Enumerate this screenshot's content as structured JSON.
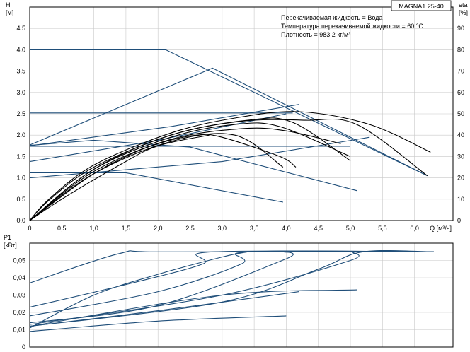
{
  "chart_data": [
    {
      "type": "line",
      "title": "MAGNA1 25-40",
      "info_lines": [
        "Перекачиваемая жидкость = Вода",
        "Температура перекачиваемой жидкости = 60 °C",
        "Плотность = 983.2 кг/м³"
      ],
      "ylabel": "H",
      "ylabel_unit": "[м]",
      "y2label": "eta",
      "y2label_unit": "[%]",
      "xlabel": "Q [м³/ч]",
      "xlim": [
        0,
        6.6
      ],
      "ylim": [
        0,
        5
      ],
      "y2lim": [
        0,
        100
      ],
      "x_ticks": [
        "0",
        "0,5",
        "1,0",
        "1,5",
        "2,0",
        "2,5",
        "3,0",
        "3,5",
        "4,0",
        "4,5",
        "5,0",
        "5,5",
        "6,0"
      ],
      "y_ticks": [
        "0.0",
        "0.5",
        "1.0",
        "1.5",
        "2.0",
        "2.5",
        "3.0",
        "3.5",
        "4.0",
        "4.5"
      ],
      "y2_ticks": [
        "0",
        "10",
        "20",
        "30",
        "40",
        "50",
        "60",
        "70",
        "80",
        "90"
      ],
      "grid": true,
      "colors": {
        "curve": "#1f4e79",
        "efficiency": "#000000",
        "grid": "#c8c8c8"
      },
      "series": [
        {
          "kind": "head",
          "points": [
            [
              0,
              4.0
            ],
            [
              2.12,
              4.0
            ],
            [
              6.2,
              1.05
            ]
          ]
        },
        {
          "kind": "head",
          "points": [
            [
              0,
              1.77
            ],
            [
              2.85,
              3.57
            ],
            [
              6.2,
              1.05
            ]
          ]
        },
        {
          "kind": "head",
          "points": [
            [
              0,
              3.22
            ],
            [
              3.3,
              3.22
            ]
          ]
        },
        {
          "kind": "head",
          "points": [
            [
              0,
              2.52
            ],
            [
              4.1,
              2.52
            ]
          ]
        },
        {
          "kind": "head",
          "points": [
            [
              0,
              1.74
            ],
            [
              5.0,
              1.74
            ]
          ]
        },
        {
          "kind": "head",
          "points": [
            [
              0,
              1.75
            ],
            [
              2.2,
              2.2
            ],
            [
              4.2,
              2.72
            ]
          ]
        },
        {
          "kind": "head",
          "points": [
            [
              0,
              1.38
            ],
            [
              2.0,
              1.88
            ],
            [
              4.0,
              2.5
            ]
          ]
        },
        {
          "kind": "head",
          "points": [
            [
              0,
              1.76
            ],
            [
              1.0,
              1.88
            ],
            [
              2.5,
              1.72
            ],
            [
              5.1,
              0.7
            ]
          ]
        },
        {
          "kind": "head",
          "points": [
            [
              0,
              1.0
            ],
            [
              3.0,
              1.38
            ],
            [
              5.3,
              1.95
            ]
          ]
        },
        {
          "kind": "head",
          "points": [
            [
              0,
              1.12
            ],
            [
              1.5,
              1.12
            ],
            [
              3.95,
              0.43
            ]
          ]
        },
        {
          "kind": "efficiency",
          "points": [
            [
              0,
              0
            ],
            [
              0.3,
              10
            ],
            [
              1.0,
              26
            ],
            [
              2.2,
              41
            ],
            [
              3.2,
              48
            ],
            [
              4.2,
              51
            ],
            [
              5.3,
              45
            ],
            [
              6.25,
              32
            ]
          ]
        },
        {
          "kind": "efficiency",
          "points": [
            [
              0,
              0
            ],
            [
              0.3,
              9.5
            ],
            [
              1.0,
              25
            ],
            [
              2.2,
              40
            ],
            [
              3.3,
              46.5
            ],
            [
              4.3,
              47
            ],
            [
              5.1,
              45
            ],
            [
              6.2,
              21
            ]
          ]
        },
        {
          "kind": "efficiency",
          "points": [
            [
              0,
              0
            ],
            [
              1.0,
              24
            ],
            [
              2.2,
              40
            ],
            [
              3.4,
              47
            ],
            [
              4.1,
              46
            ],
            [
              5.0,
              28
            ]
          ]
        },
        {
          "kind": "efficiency",
          "points": [
            [
              0,
              0
            ],
            [
              1.0,
              24
            ],
            [
              2.2,
              39
            ],
            [
              3.2,
              45
            ],
            [
              3.9,
              44
            ],
            [
              5.0,
              30
            ]
          ]
        },
        {
          "kind": "efficiency",
          "points": [
            [
              0,
              0
            ],
            [
              1.0,
              23
            ],
            [
              2.2,
              38
            ],
            [
              3.3,
              43
            ],
            [
              4.0,
              42
            ],
            [
              4.85,
              36
            ]
          ]
        },
        {
          "kind": "efficiency",
          "points": [
            [
              0,
              0
            ],
            [
              1.0,
              22
            ],
            [
              2.2,
              37
            ],
            [
              3.2,
              40
            ],
            [
              3.95,
              25
            ]
          ]
        },
        {
          "kind": "efficiency",
          "points": [
            [
              0,
              0
            ],
            [
              0.9,
              20
            ],
            [
              1.5,
              30
            ],
            [
              2.0,
              36
            ],
            [
              2.6,
              40
            ],
            [
              3.0,
              39
            ],
            [
              3.9,
              30
            ],
            [
              4.15,
              25
            ]
          ]
        },
        {
          "kind": "efficiency",
          "points": [
            [
              0,
              0
            ],
            [
              0.5,
              10
            ],
            [
              1.4,
              26
            ],
            [
              2.0,
              35
            ],
            [
              2.8,
              40
            ]
          ]
        }
      ]
    },
    {
      "type": "line",
      "ylabel": "P1",
      "ylabel_unit": "[кВт]",
      "xlim": [
        0,
        6.6
      ],
      "ylim": [
        0,
        0.06
      ],
      "y_ticks": [
        "0",
        "0,01",
        "0,02",
        "0,03",
        "0,04",
        "0,05"
      ],
      "grid": true,
      "colors": {
        "curve": "#1f4e79",
        "grid": "#c8c8c8"
      },
      "series": [
        {
          "kind": "power",
          "points": [
            [
              0,
              0.037
            ],
            [
              1.4,
              0.054
            ],
            [
              2.1,
              0.055
            ],
            [
              6.3,
              0.055
            ]
          ]
        },
        {
          "kind": "power",
          "points": [
            [
              0,
              0.023
            ],
            [
              1.6,
              0.037
            ],
            [
              2.7,
              0.048
            ],
            [
              2.85,
              0.055
            ],
            [
              6.3,
              0.055
            ]
          ]
        },
        {
          "kind": "power",
          "points": [
            [
              0,
              0.018
            ],
            [
              2.0,
              0.032
            ],
            [
              3.3,
              0.048
            ],
            [
              3.4,
              0.055
            ],
            [
              6.3,
              0.055
            ]
          ]
        },
        {
          "kind": "power",
          "points": [
            [
              0,
              0.014
            ],
            [
              2.0,
              0.024
            ],
            [
              4.0,
              0.051
            ],
            [
              4.1,
              0.055
            ],
            [
              6.3,
              0.055
            ]
          ]
        },
        {
          "kind": "power",
          "points": [
            [
              0,
              0.013
            ],
            [
              3.0,
              0.03
            ],
            [
              5.0,
              0.05
            ],
            [
              5.1,
              0.055
            ],
            [
              6.3,
              0.055
            ]
          ]
        },
        {
          "kind": "power",
          "points": [
            [
              0,
              0.012
            ],
            [
              3.0,
              0.026
            ],
            [
              4.5,
              0.045
            ],
            [
              5.2,
              0.055
            ],
            [
              6.3,
              0.055
            ]
          ]
        },
        {
          "kind": "power",
          "points": [
            [
              0,
              0.011
            ],
            [
              1.0,
              0.03
            ],
            [
              2.0,
              0.042
            ],
            [
              3.0,
              0.052
            ],
            [
              3.4,
              0.055
            ]
          ]
        },
        {
          "kind": "power",
          "points": [
            [
              0,
              0.012
            ],
            [
              3.0,
              0.03
            ],
            [
              5.1,
              0.033
            ]
          ]
        },
        {
          "kind": "power",
          "points": [
            [
              0,
              0.009
            ],
            [
              2.0,
              0.015
            ],
            [
              4.0,
              0.018
            ]
          ]
        },
        {
          "kind": "power",
          "points": [
            [
              0,
              0.012
            ],
            [
              2.0,
              0.021
            ],
            [
              4.2,
              0.032
            ]
          ]
        }
      ]
    }
  ]
}
